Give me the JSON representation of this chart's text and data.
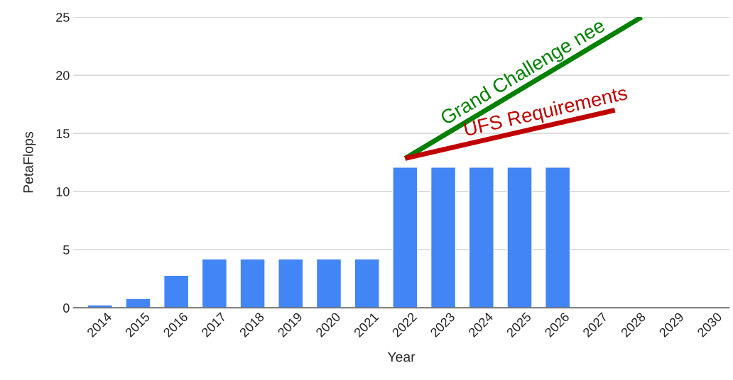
{
  "chart_data": {
    "type": "bar",
    "xlabel": "Year",
    "ylabel": "PetaFlops",
    "x": [
      2014,
      2015,
      2016,
      2017,
      2018,
      2019,
      2020,
      2021,
      2022,
      2023,
      2024,
      2025,
      2026
    ],
    "series": [
      {
        "color": "#4285f4",
        "values": [
          0.25,
          0.8,
          2.8,
          4.2,
          4.2,
          4.2,
          4.2,
          4.2,
          12.1,
          12.1,
          12.1,
          12.1,
          12.1
        ]
      },
      {
        "type": "line",
        "color": "#008000",
        "x": [
          2022,
          2028.2
        ],
        "values": [
          12.85,
          25
        ]
      },
      {
        "type": "line",
        "color": "#c00000",
        "x": [
          2022,
          2027.5
        ],
        "values": [
          12.85,
          17.0
        ]
      }
    ],
    "annotations": [
      "Grand Challenge nee",
      "UFS Requirements"
    ],
    "xlim": [
      2013.3,
      2030.5
    ],
    "xticks": [
      2014,
      2015,
      2016,
      2017,
      2018,
      2019,
      2020,
      2021,
      2022,
      2023,
      2024,
      2025,
      2026,
      2027,
      2028,
      2029,
      2030
    ],
    "ylim": [
      0,
      25
    ],
    "yticks": [
      0,
      5,
      10,
      15,
      20,
      25
    ],
    "grid": "y",
    "legend": false
  }
}
